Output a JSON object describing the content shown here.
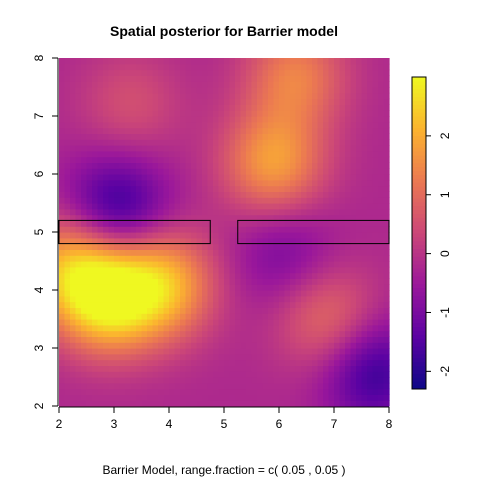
{
  "chart_data": {
    "type": "heatmap",
    "title": "Spatial posterior for Barrier model",
    "xlabel": "Barrier Model, range.fraction = c( 0.05 ,  0.05 )",
    "ylabel": "",
    "xlim": [
      2,
      8
    ],
    "ylim": [
      2,
      8
    ],
    "x_ticks": [
      "2",
      "3",
      "4",
      "5",
      "6",
      "7",
      "8"
    ],
    "y_ticks": [
      "2",
      "3",
      "4",
      "5",
      "6",
      "7",
      "8"
    ],
    "colorbar": {
      "range": [
        -2.3,
        3.0
      ],
      "ticks": [
        "-2",
        "-1",
        "0",
        "1",
        "2"
      ],
      "palette": [
        "#0d0887",
        "#5b02a3",
        "#9a179b",
        "#cb4678",
        "#eb7852",
        "#fbb32f",
        "#eff821"
      ]
    },
    "field_hotspots": [
      {
        "x": 3.05,
        "y": 5.4,
        "value": -2.1
      },
      {
        "x": 7.7,
        "y": 2.6,
        "value": -2.0
      },
      {
        "x": 6.1,
        "y": 4.65,
        "value": -1.1
      },
      {
        "x": 2.9,
        "y": 3.85,
        "value": 2.9
      },
      {
        "x": 3.9,
        "y": 4.1,
        "value": 2.3
      },
      {
        "x": 2.2,
        "y": 4.4,
        "value": 2.0
      },
      {
        "x": 5.9,
        "y": 6.2,
        "value": 2.0
      },
      {
        "x": 6.3,
        "y": 7.7,
        "value": 1.5
      },
      {
        "x": 6.9,
        "y": 3.5,
        "value": 1.2
      },
      {
        "x": 3.3,
        "y": 7.2,
        "value": 0.6
      }
    ],
    "barriers": [
      {
        "x0": 2.0,
        "x1": 4.75,
        "y0": 4.8,
        "y1": 5.2
      },
      {
        "x0": 5.25,
        "x1": 8.0,
        "y0": 4.8,
        "y1": 5.2
      }
    ]
  }
}
